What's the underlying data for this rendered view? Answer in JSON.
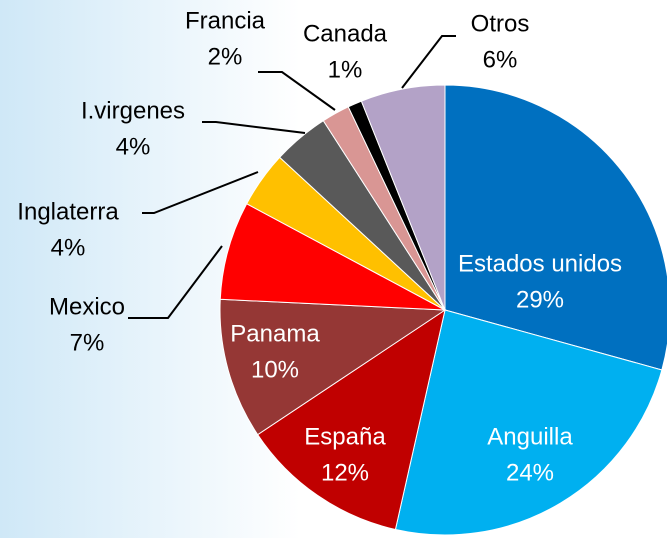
{
  "chart_data": {
    "type": "pie",
    "categories": [
      "Estados unidos",
      "Anguilla",
      "España",
      "Panama",
      "Mexico",
      "Inglaterra",
      "I.virgenes",
      "Francia",
      "Canada",
      "Otros"
    ],
    "values": [
      29,
      24,
      12,
      10,
      7,
      4,
      4,
      2,
      1,
      6
    ],
    "value_labels": [
      "29%",
      "24%",
      "12%",
      "10%",
      "7%",
      "4%",
      "4%",
      "2%",
      "1%",
      "6%"
    ],
    "colors": [
      "#0070c0",
      "#00b0f0",
      "#c00000",
      "#953735",
      "#ff0000",
      "#ffc000",
      "#595959",
      "#d99694",
      "#000000",
      "#b3a2c7"
    ]
  }
}
